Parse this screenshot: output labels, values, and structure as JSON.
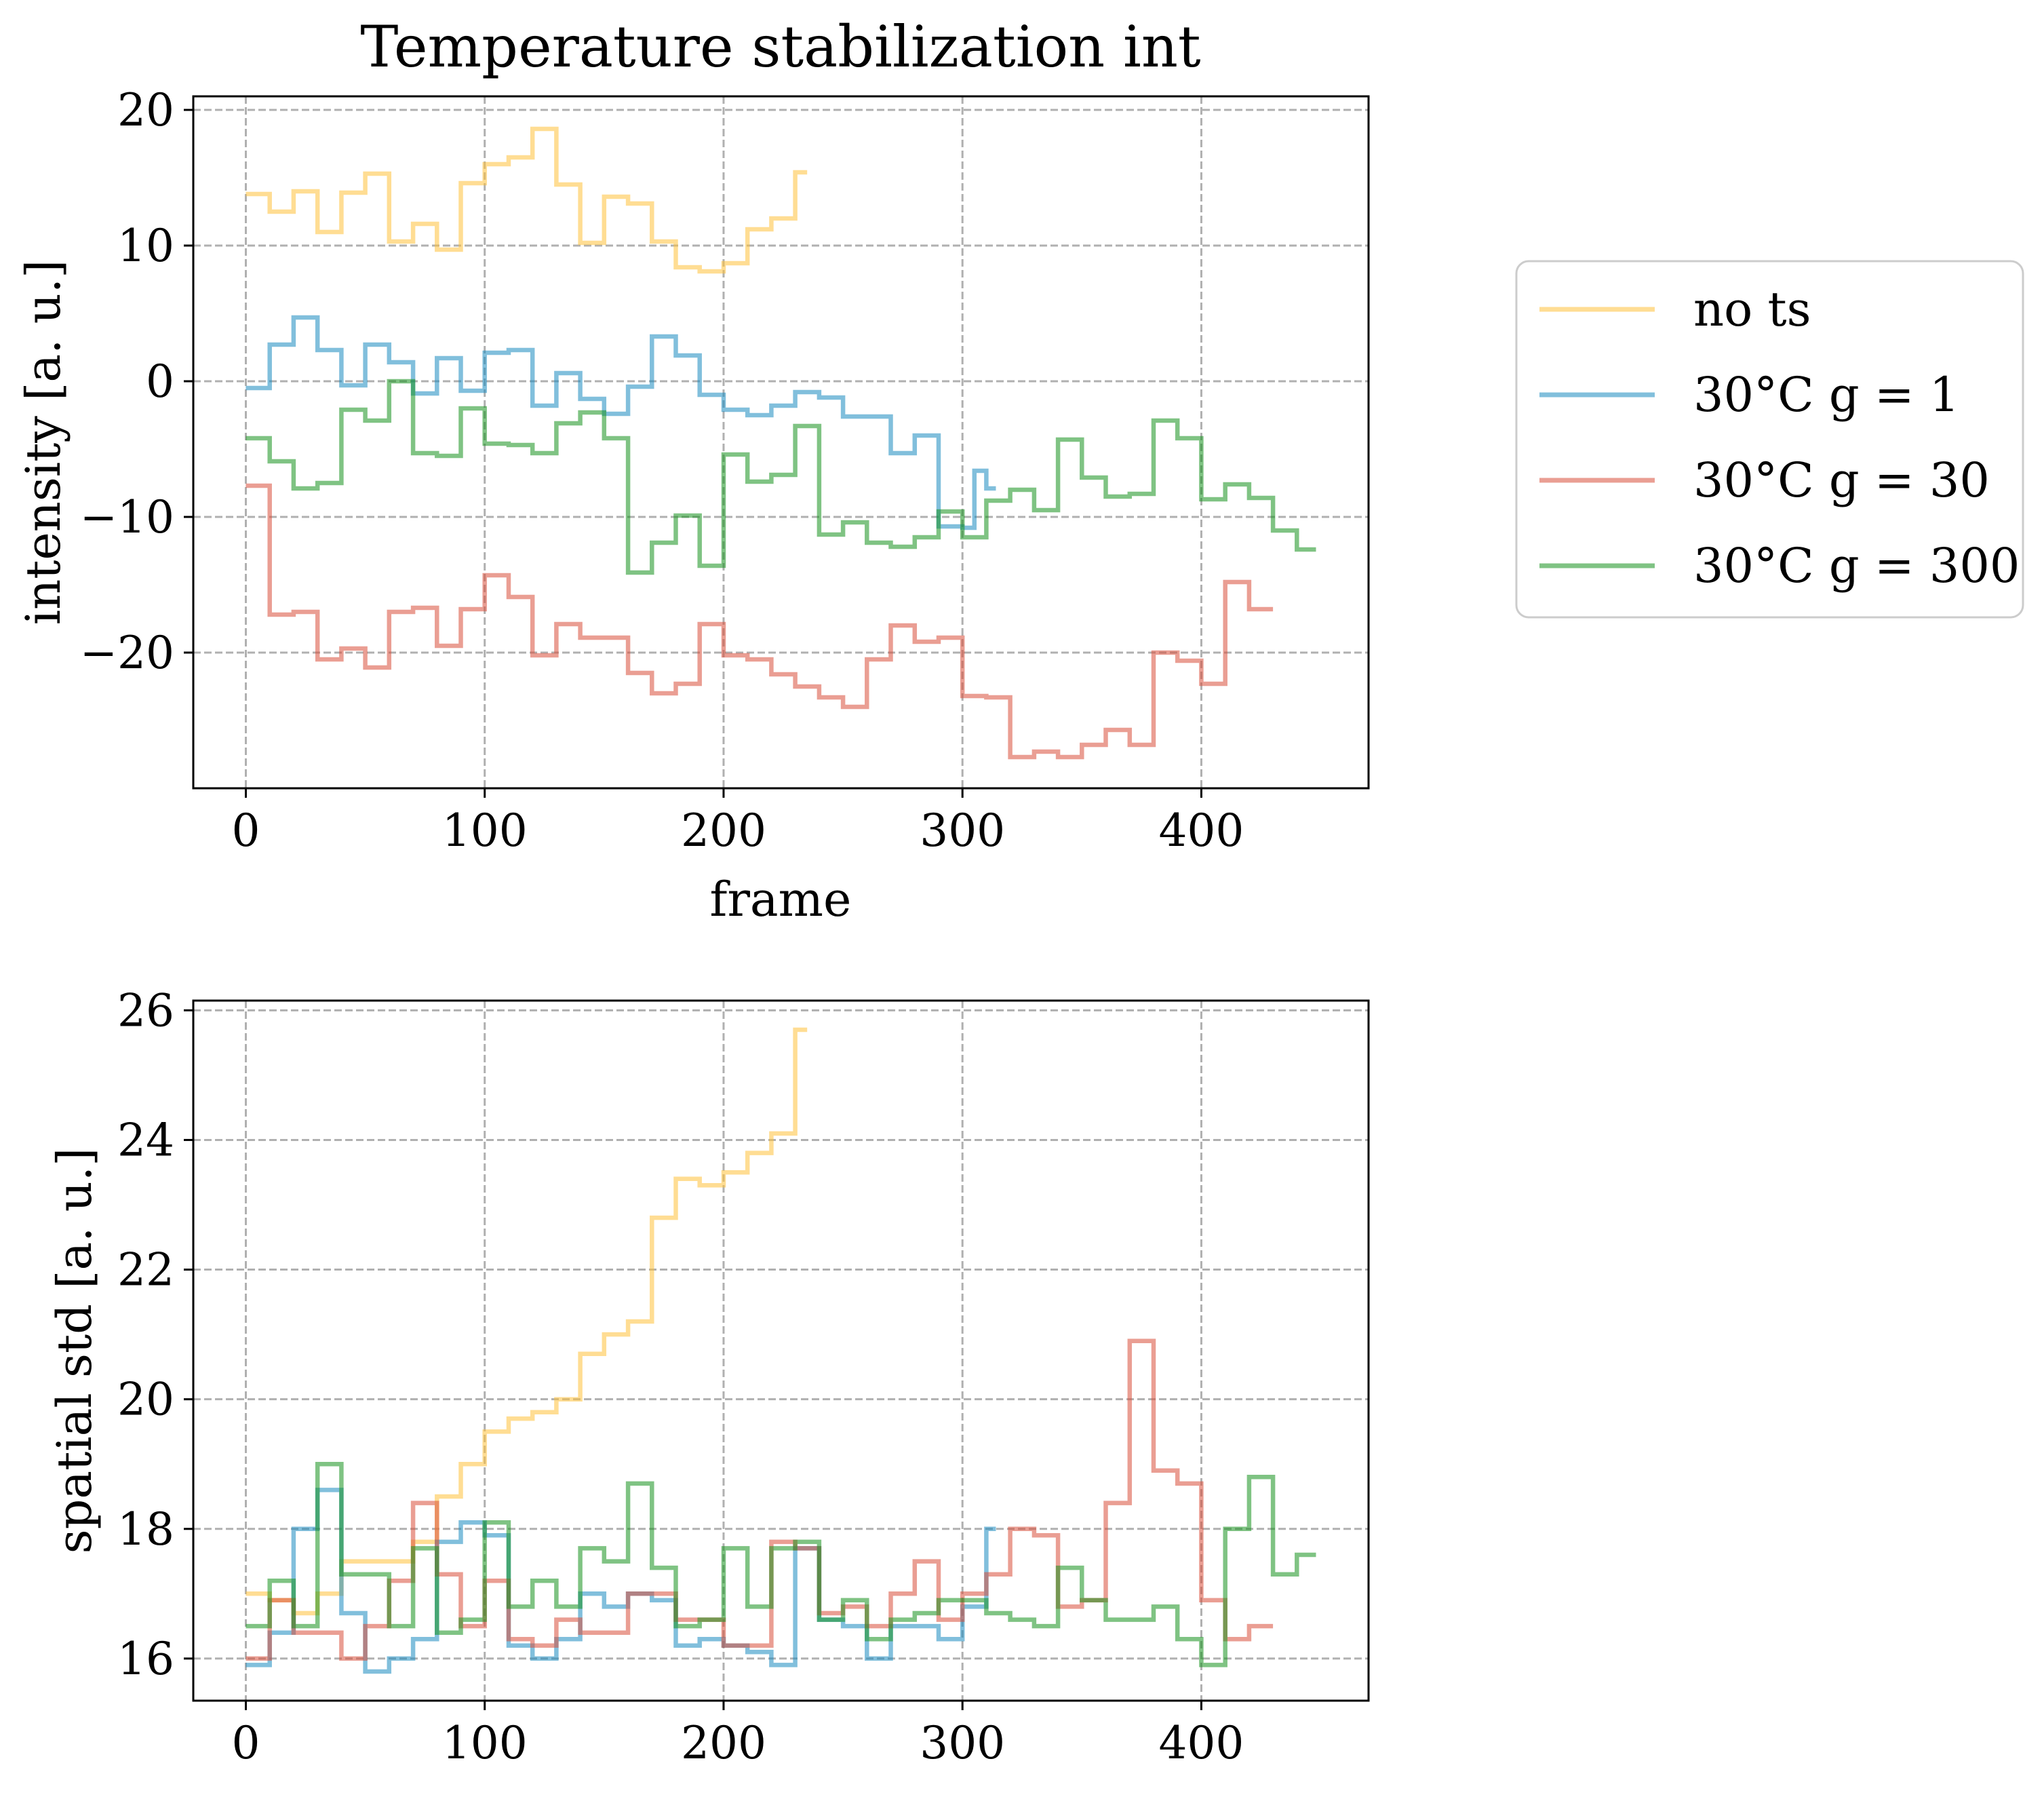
{
  "chart_data": [
    {
      "type": "line",
      "drawstyle": "steps",
      "title": "Temperature stabilization int",
      "xlabel": "frame",
      "ylabel": "intensity [a. u.]",
      "xlim": [
        -22,
        470
      ],
      "ylim": [
        -30,
        21
      ],
      "xticks": [
        0,
        100,
        200,
        300,
        400
      ],
      "xtick_labels": [
        "0",
        "100",
        "200",
        "300",
        "400"
      ],
      "yticks": [
        -20,
        -10,
        0,
        10,
        20
      ],
      "ytick_labels": [
        "−20",
        "−10",
        "0",
        "10",
        "20"
      ],
      "grid": true,
      "series": [
        {
          "name": "no ts",
          "color": "#ffc13a",
          "x": [
            0,
            10,
            20,
            30,
            40,
            50,
            60,
            70,
            80,
            90,
            100,
            110,
            120,
            130,
            140,
            150,
            160,
            170,
            180,
            190,
            200,
            210,
            220,
            230,
            235
          ],
          "y": [
            13.8,
            12.5,
            14.0,
            11.0,
            13.9,
            15.3,
            10.3,
            11.6,
            9.7,
            14.6,
            16.0,
            16.5,
            18.6,
            14.5,
            10.2,
            13.6,
            13.1,
            10.3,
            8.4,
            8.1,
            8.7,
            11.2,
            12.0,
            15.4,
            15.4
          ]
        },
        {
          "name": "30°C g = 1",
          "color": "#1a8bc0",
          "x": [
            0,
            10,
            20,
            30,
            40,
            50,
            60,
            70,
            80,
            90,
            100,
            110,
            120,
            130,
            140,
            150,
            160,
            170,
            180,
            190,
            200,
            210,
            220,
            230,
            240,
            250,
            260,
            270,
            280,
            290,
            300,
            305,
            310,
            314
          ],
          "y": [
            -0.5,
            2.7,
            4.7,
            2.3,
            -0.3,
            2.7,
            1.4,
            -0.9,
            1.7,
            -0.7,
            2.1,
            2.3,
            -1.8,
            0.6,
            -1.3,
            -2.4,
            -0.4,
            3.3,
            1.9,
            -1.0,
            -2.1,
            -2.5,
            -1.8,
            -0.8,
            -1.2,
            -2.6,
            -2.6,
            -5.3,
            -4.0,
            -10.7,
            -10.8,
            -6.6,
            -7.9,
            -7.9
          ]
        },
        {
          "name": "30°C g = 30",
          "color": "#d94f3a",
          "x": [
            0,
            10,
            20,
            30,
            40,
            50,
            60,
            70,
            80,
            90,
            100,
            110,
            120,
            130,
            140,
            150,
            160,
            170,
            180,
            190,
            200,
            210,
            220,
            230,
            240,
            250,
            260,
            270,
            280,
            290,
            300,
            310,
            320,
            330,
            340,
            350,
            360,
            370,
            380,
            390,
            400,
            410,
            420,
            430
          ],
          "y": [
            -7.7,
            -17.2,
            -17.0,
            -20.5,
            -19.7,
            -21.1,
            -17.0,
            -16.7,
            -19.5,
            -16.8,
            -14.3,
            -15.9,
            -20.2,
            -17.9,
            -18.9,
            -18.9,
            -21.5,
            -23.0,
            -22.3,
            -17.9,
            -20.2,
            -20.5,
            -21.6,
            -22.5,
            -23.3,
            -24.0,
            -20.5,
            -18.0,
            -19.2,
            -18.9,
            -23.2,
            -23.3,
            -27.7,
            -27.3,
            -27.7,
            -26.8,
            -25.7,
            -26.8,
            -20.0,
            -20.6,
            -22.3,
            -14.8,
            -16.8,
            -16.8
          ]
        },
        {
          "name": "30°C g = 300",
          "color": "#16921e",
          "x": [
            0,
            10,
            20,
            30,
            40,
            50,
            60,
            70,
            80,
            90,
            100,
            110,
            120,
            130,
            140,
            150,
            160,
            170,
            180,
            190,
            200,
            210,
            220,
            230,
            240,
            250,
            260,
            270,
            280,
            290,
            300,
            310,
            320,
            330,
            340,
            350,
            360,
            370,
            380,
            390,
            400,
            410,
            420,
            430,
            440,
            448
          ],
          "y": [
            -4.2,
            -5.9,
            -7.9,
            -7.5,
            -2.1,
            -2.9,
            0.0,
            -5.3,
            -5.5,
            -2.0,
            -4.6,
            -4.7,
            -5.3,
            -3.1,
            -2.3,
            -4.2,
            -14.1,
            -11.9,
            -9.9,
            -13.6,
            -5.4,
            -7.4,
            -6.9,
            -3.3,
            -11.3,
            -10.4,
            -11.9,
            -12.2,
            -11.5,
            -9.6,
            -11.5,
            -8.8,
            -8.0,
            -9.5,
            -4.3,
            -7.1,
            -8.5,
            -8.3,
            -2.9,
            -4.2,
            -8.7,
            -7.6,
            -8.6,
            -11.0,
            -12.4,
            -12.4
          ]
        }
      ]
    },
    {
      "type": "line",
      "drawstyle": "steps",
      "title": "",
      "xlabel": "",
      "ylabel": "spatial std [a. u.]",
      "xlim": [
        -22,
        470
      ],
      "ylim": [
        15.35,
        26.15
      ],
      "xticks": [
        0,
        100,
        200,
        300,
        400
      ],
      "xtick_labels": [
        "0",
        "100",
        "200",
        "300",
        "400"
      ],
      "yticks": [
        16,
        18,
        20,
        22,
        24,
        26
      ],
      "ytick_labels": [
        "16",
        "18",
        "20",
        "22",
        "24",
        "26"
      ],
      "grid": true,
      "series": [
        {
          "name": "no ts",
          "color": "#ffc13a",
          "x": [
            0,
            10,
            20,
            30,
            40,
            50,
            60,
            70,
            80,
            90,
            100,
            110,
            120,
            130,
            140,
            150,
            160,
            170,
            180,
            190,
            200,
            210,
            220,
            230,
            235
          ],
          "y": [
            17.0,
            16.9,
            16.7,
            17.0,
            17.5,
            17.5,
            17.5,
            17.8,
            18.5,
            19.0,
            19.5,
            19.7,
            19.8,
            20.0,
            20.7,
            21.0,
            21.2,
            22.8,
            23.4,
            23.3,
            23.5,
            23.8,
            24.1,
            25.7,
            25.7
          ]
        },
        {
          "name": "30°C g = 1",
          "color": "#1a8bc0",
          "x": [
            0,
            10,
            20,
            30,
            40,
            50,
            60,
            70,
            80,
            90,
            100,
            110,
            120,
            130,
            140,
            150,
            160,
            170,
            180,
            190,
            200,
            210,
            220,
            230,
            240,
            250,
            260,
            270,
            280,
            290,
            300,
            310,
            314
          ],
          "y": [
            15.9,
            16.4,
            18.0,
            18.6,
            16.7,
            15.8,
            16.0,
            16.3,
            17.8,
            18.1,
            17.9,
            16.2,
            16.0,
            16.3,
            17.0,
            16.8,
            17.0,
            16.9,
            16.2,
            16.3,
            16.2,
            16.1,
            15.9,
            17.7,
            16.6,
            16.5,
            16.0,
            16.5,
            16.5,
            16.3,
            16.8,
            18.0,
            18.0
          ]
        },
        {
          "name": "30°C g = 30",
          "color": "#d94f3a",
          "x": [
            0,
            10,
            20,
            30,
            40,
            50,
            60,
            70,
            80,
            90,
            100,
            110,
            120,
            130,
            140,
            150,
            160,
            170,
            180,
            190,
            200,
            210,
            220,
            230,
            240,
            250,
            260,
            270,
            280,
            290,
            300,
            310,
            320,
            330,
            340,
            350,
            360,
            370,
            380,
            390,
            400,
            410,
            420,
            430
          ],
          "y": [
            16.0,
            16.9,
            16.4,
            16.4,
            16.0,
            16.5,
            17.2,
            18.4,
            17.3,
            16.5,
            17.2,
            16.3,
            16.2,
            16.6,
            16.4,
            16.4,
            17.0,
            17.0,
            16.6,
            16.6,
            16.2,
            16.2,
            17.8,
            17.7,
            16.7,
            16.8,
            16.5,
            17.0,
            17.5,
            16.6,
            17.0,
            17.3,
            18.0,
            17.9,
            16.8,
            16.9,
            18.4,
            20.9,
            18.9,
            18.7,
            16.9,
            16.3,
            16.5,
            16.5
          ]
        },
        {
          "name": "30°C g = 300",
          "color": "#16921e",
          "x": [
            0,
            10,
            20,
            30,
            40,
            50,
            60,
            70,
            80,
            90,
            100,
            110,
            120,
            130,
            140,
            150,
            160,
            170,
            180,
            190,
            200,
            210,
            220,
            230,
            240,
            250,
            260,
            270,
            280,
            290,
            300,
            310,
            320,
            330,
            340,
            350,
            360,
            370,
            380,
            390,
            400,
            410,
            420,
            430,
            440,
            448
          ],
          "y": [
            16.5,
            17.2,
            16.5,
            19.0,
            17.3,
            17.3,
            16.5,
            17.7,
            16.4,
            16.6,
            18.1,
            16.8,
            17.2,
            16.8,
            17.7,
            17.5,
            18.7,
            17.4,
            16.5,
            16.6,
            17.7,
            16.8,
            17.7,
            17.8,
            16.6,
            16.9,
            16.3,
            16.6,
            16.7,
            16.9,
            16.9,
            16.7,
            16.6,
            16.5,
            17.4,
            16.9,
            16.6,
            16.6,
            16.8,
            16.3,
            15.9,
            18.0,
            18.8,
            17.3,
            17.6,
            17.6
          ]
        }
      ]
    }
  ],
  "legend": {
    "placement": "right",
    "entries": [
      {
        "label": "no ts",
        "color": "#ffc13a"
      },
      {
        "label": "30°C g = 1",
        "color": "#1a8bc0"
      },
      {
        "label": "30°C g = 30",
        "color": "#d94f3a"
      },
      {
        "label": "30°C g = 300",
        "color": "#16921e"
      }
    ]
  }
}
